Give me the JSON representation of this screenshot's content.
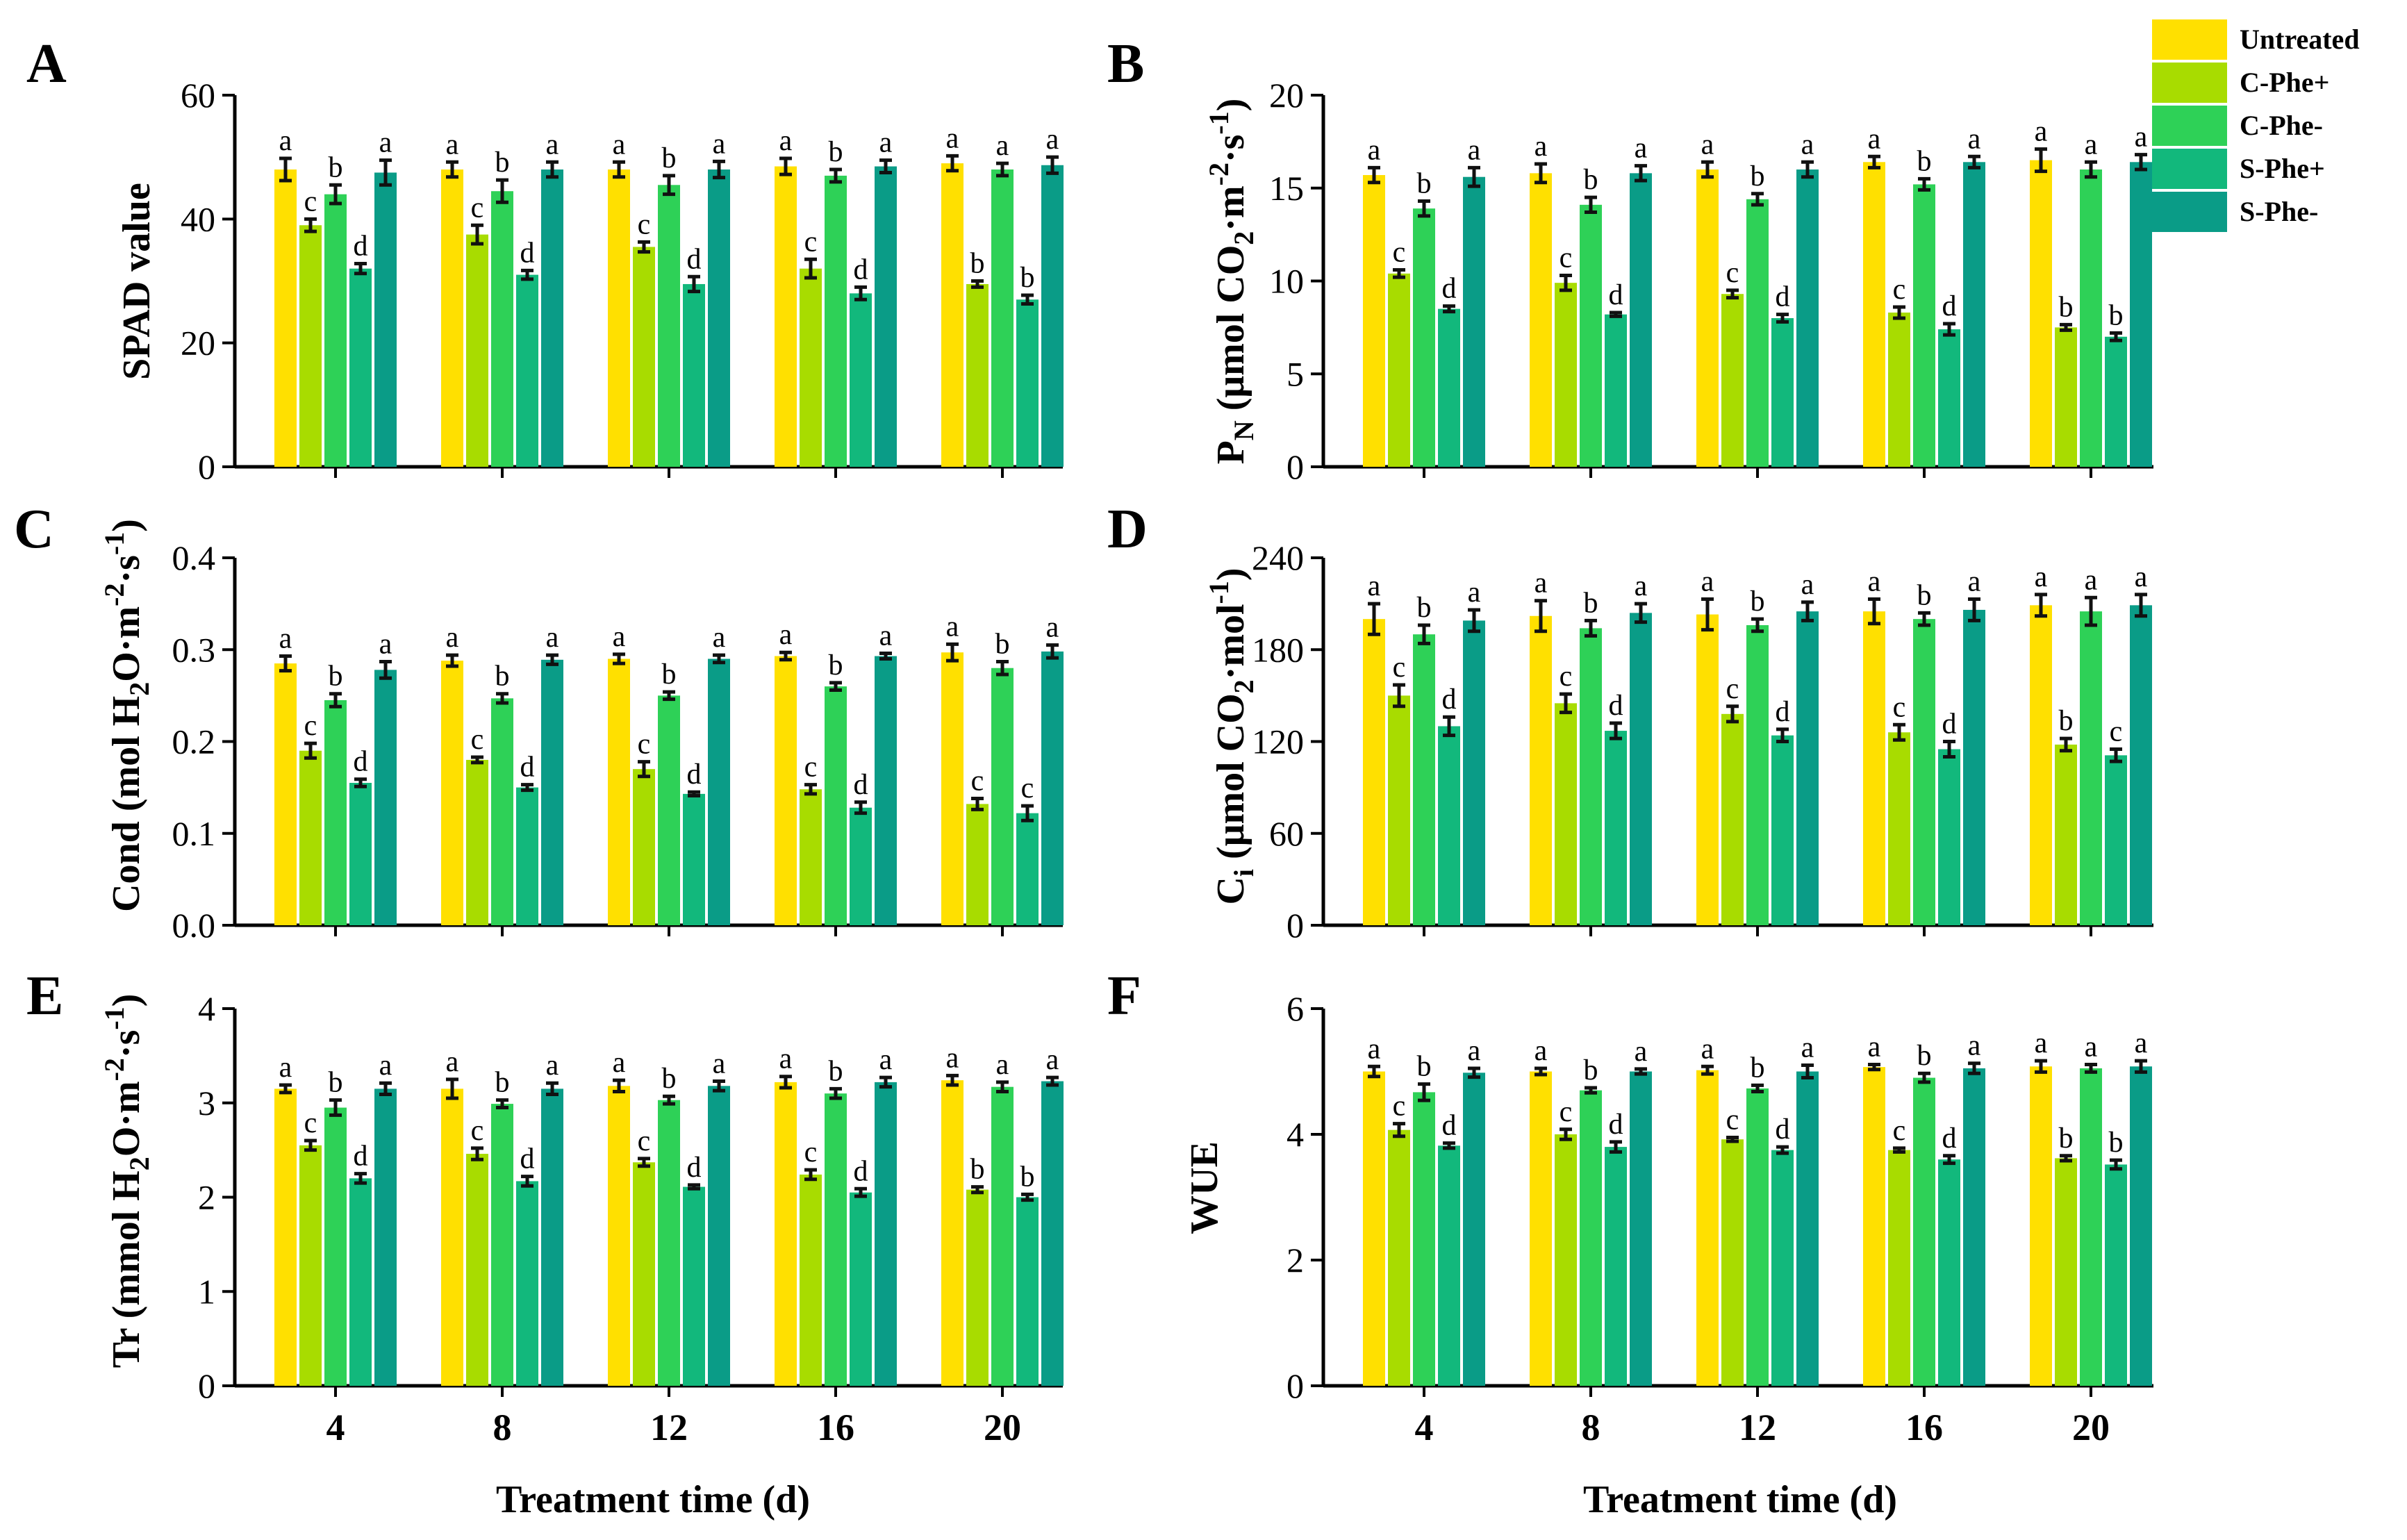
{
  "colors": {
    "Untreated": "#FFE000",
    "C-Phe+": "#A8DC00",
    "C-Phe-": "#2ED157",
    "S-Phe+": "#12B87C",
    "S-Phe-": "#0A9C87"
  },
  "legend": {
    "items": [
      "Untreated",
      "C-Phe+",
      "C-Phe-",
      "S-Phe+",
      "S-Phe-"
    ]
  },
  "x_axis_title": "Treatment time (d)",
  "chart_data": [
    {
      "panel": "A",
      "type": "bar",
      "ylabel": "SPAD value",
      "ylim": [
        0,
        60
      ],
      "yticks": [
        "0",
        "20",
        "40",
        "60"
      ],
      "categories": [
        "4",
        "8",
        "12",
        "16",
        "20"
      ],
      "series": [
        {
          "name": "Untreated",
          "values": [
            48,
            48,
            48,
            48.5,
            49
          ],
          "errors": [
            1.8,
            1.2,
            1.2,
            1.3,
            1.2
          ],
          "letters": [
            "a",
            "a",
            "a",
            "a",
            "a"
          ]
        },
        {
          "name": "C-Phe+",
          "values": [
            39,
            37.5,
            35.5,
            32,
            29.5
          ],
          "errors": [
            1.0,
            1.5,
            0.8,
            1.5,
            0.5
          ],
          "letters": [
            "c",
            "c",
            "c",
            "c",
            "b"
          ]
        },
        {
          "name": "C-Phe-",
          "values": [
            44,
            44.5,
            45.5,
            47,
            48
          ],
          "errors": [
            1.5,
            1.8,
            1.5,
            1.0,
            1.0
          ],
          "letters": [
            "b",
            "b",
            "b",
            "b",
            "a"
          ]
        },
        {
          "name": "S-Phe+",
          "values": [
            32,
            31,
            29.5,
            28,
            27
          ],
          "errors": [
            0.8,
            0.7,
            1.2,
            1.0,
            0.7
          ],
          "letters": [
            "d",
            "d",
            "d",
            "d",
            "b"
          ]
        },
        {
          "name": "S-Phe-",
          "values": [
            47.5,
            48,
            48,
            48.5,
            48.7
          ],
          "errors": [
            2.0,
            1.2,
            1.3,
            1.0,
            1.3
          ],
          "letters": [
            "a",
            "a",
            "a",
            "a",
            "a"
          ]
        }
      ]
    },
    {
      "panel": "B",
      "type": "bar",
      "ylabel": "PN (μmol CO2·m-2·s-1)",
      "ylim": [
        0,
        20
      ],
      "yticks": [
        "0",
        "5",
        "10",
        "15",
        "20"
      ],
      "categories": [
        "4",
        "8",
        "12",
        "16",
        "20"
      ],
      "series": [
        {
          "name": "Untreated",
          "values": [
            15.7,
            15.8,
            16,
            16.4,
            16.5
          ],
          "errors": [
            0.4,
            0.5,
            0.4,
            0.3,
            0.6
          ],
          "letters": [
            "a",
            "a",
            "a",
            "a",
            "a"
          ]
        },
        {
          "name": "C-Phe+",
          "values": [
            10.4,
            9.9,
            9.3,
            8.3,
            7.5
          ],
          "errors": [
            0.2,
            0.4,
            0.2,
            0.3,
            0.15
          ],
          "letters": [
            "c",
            "c",
            "c",
            "c",
            "b"
          ]
        },
        {
          "name": "C-Phe-",
          "values": [
            13.9,
            14.1,
            14.4,
            15.2,
            16
          ],
          "errors": [
            0.4,
            0.4,
            0.3,
            0.3,
            0.4
          ],
          "letters": [
            "b",
            "b",
            "b",
            "b",
            "a"
          ]
        },
        {
          "name": "S-Phe+",
          "values": [
            8.5,
            8.2,
            8.0,
            7.4,
            7.0
          ],
          "errors": [
            0.15,
            0.1,
            0.2,
            0.3,
            0.2
          ],
          "letters": [
            "d",
            "d",
            "d",
            "d",
            "b"
          ]
        },
        {
          "name": "S-Phe-",
          "values": [
            15.6,
            15.8,
            16,
            16.4,
            16.4
          ],
          "errors": [
            0.5,
            0.4,
            0.4,
            0.3,
            0.4
          ],
          "letters": [
            "a",
            "a",
            "a",
            "a",
            "a"
          ]
        }
      ]
    },
    {
      "panel": "C",
      "type": "bar",
      "ylabel": "Cond (mol H2O·m-2·s-1)",
      "ylim": [
        0,
        0.4
      ],
      "yticks": [
        "0.0",
        "0.1",
        "0.2",
        "0.3",
        "0.4"
      ],
      "categories": [
        "4",
        "8",
        "12",
        "16",
        "20"
      ],
      "series": [
        {
          "name": "Untreated",
          "values": [
            0.285,
            0.288,
            0.29,
            0.293,
            0.297
          ],
          "errors": [
            0.008,
            0.006,
            0.005,
            0.004,
            0.009
          ],
          "letters": [
            "a",
            "a",
            "a",
            "a",
            "a"
          ]
        },
        {
          "name": "C-Phe+",
          "values": [
            0.19,
            0.18,
            0.17,
            0.148,
            0.132
          ],
          "errors": [
            0.008,
            0.003,
            0.008,
            0.005,
            0.006
          ],
          "letters": [
            "c",
            "c",
            "c",
            "c",
            "c"
          ]
        },
        {
          "name": "C-Phe-",
          "values": [
            0.245,
            0.247,
            0.25,
            0.26,
            0.28
          ],
          "errors": [
            0.007,
            0.005,
            0.004,
            0.004,
            0.007
          ],
          "letters": [
            "b",
            "b",
            "b",
            "b",
            "b"
          ]
        },
        {
          "name": "S-Phe+",
          "values": [
            0.155,
            0.15,
            0.143,
            0.128,
            0.122
          ],
          "errors": [
            0.004,
            0.003,
            0.002,
            0.006,
            0.008
          ],
          "letters": [
            "d",
            "d",
            "d",
            "d",
            "c"
          ]
        },
        {
          "name": "S-Phe-",
          "values": [
            0.278,
            0.289,
            0.29,
            0.293,
            0.298
          ],
          "errors": [
            0.009,
            0.005,
            0.004,
            0.003,
            0.007
          ],
          "letters": [
            "a",
            "a",
            "a",
            "a",
            "a"
          ]
        }
      ]
    },
    {
      "panel": "D",
      "type": "bar",
      "ylabel": "Ci (μmol CO2·mol-1)",
      "ylim": [
        0,
        240
      ],
      "yticks": [
        "0",
        "60",
        "120",
        "180",
        "240"
      ],
      "categories": [
        "4",
        "8",
        "12",
        "16",
        "20"
      ],
      "series": [
        {
          "name": "Untreated",
          "values": [
            200,
            202,
            203,
            205,
            209
          ],
          "errors": [
            10,
            10,
            10,
            8,
            7
          ],
          "letters": [
            "a",
            "a",
            "a",
            "a",
            "a"
          ]
        },
        {
          "name": "C-Phe+",
          "values": [
            150,
            145,
            138,
            126,
            118
          ],
          "errors": [
            7,
            6,
            5,
            5,
            4
          ],
          "letters": [
            "c",
            "c",
            "c",
            "c",
            "b"
          ]
        },
        {
          "name": "C-Phe-",
          "values": [
            190,
            194,
            196,
            200,
            205
          ],
          "errors": [
            6,
            5,
            4,
            4,
            9
          ],
          "letters": [
            "b",
            "b",
            "b",
            "b",
            "a"
          ]
        },
        {
          "name": "S-Phe+",
          "values": [
            130,
            127,
            124,
            115,
            111
          ],
          "errors": [
            6,
            5,
            4,
            5,
            4
          ],
          "letters": [
            "d",
            "d",
            "d",
            "d",
            "c"
          ]
        },
        {
          "name": "S-Phe-",
          "values": [
            199,
            204,
            205,
            206,
            209
          ],
          "errors": [
            7,
            6,
            6,
            7,
            7
          ],
          "letters": [
            "a",
            "a",
            "a",
            "a",
            "a"
          ]
        }
      ]
    },
    {
      "panel": "E",
      "type": "bar",
      "ylabel": "Tr (mmol H2O·m-2·s-1)",
      "ylim": [
        0,
        4
      ],
      "yticks": [
        "0",
        "1",
        "2",
        "3",
        "4"
      ],
      "categories": [
        "4",
        "8",
        "12",
        "16",
        "20"
      ],
      "series": [
        {
          "name": "Untreated",
          "values": [
            3.15,
            3.15,
            3.18,
            3.22,
            3.24
          ],
          "errors": [
            0.04,
            0.1,
            0.06,
            0.06,
            0.05
          ],
          "letters": [
            "a",
            "a",
            "a",
            "a",
            "a"
          ]
        },
        {
          "name": "C-Phe+",
          "values": [
            2.55,
            2.46,
            2.37,
            2.24,
            2.08
          ],
          "errors": [
            0.05,
            0.06,
            0.04,
            0.05,
            0.03
          ],
          "letters": [
            "c",
            "c",
            "c",
            "c",
            "b"
          ]
        },
        {
          "name": "C-Phe-",
          "values": [
            2.95,
            2.99,
            3.03,
            3.1,
            3.17
          ],
          "errors": [
            0.08,
            0.04,
            0.04,
            0.05,
            0.05
          ],
          "letters": [
            "b",
            "b",
            "b",
            "b",
            "a"
          ]
        },
        {
          "name": "S-Phe+",
          "values": [
            2.2,
            2.17,
            2.11,
            2.05,
            2.0
          ],
          "errors": [
            0.05,
            0.05,
            0.02,
            0.04,
            0.03
          ],
          "letters": [
            "d",
            "d",
            "d",
            "d",
            "b"
          ]
        },
        {
          "name": "S-Phe-",
          "values": [
            3.15,
            3.15,
            3.18,
            3.22,
            3.23
          ],
          "errors": [
            0.06,
            0.06,
            0.05,
            0.05,
            0.04
          ],
          "letters": [
            "a",
            "a",
            "a",
            "a",
            "a"
          ]
        }
      ]
    },
    {
      "panel": "F",
      "type": "bar",
      "ylabel": "WUE",
      "ylim": [
        0,
        6
      ],
      "yticks": [
        "0",
        "2",
        "4",
        "6"
      ],
      "categories": [
        "4",
        "8",
        "12",
        "16",
        "20"
      ],
      "series": [
        {
          "name": "Untreated",
          "values": [
            5.0,
            5.0,
            5.02,
            5.07,
            5.08
          ],
          "errors": [
            0.08,
            0.05,
            0.06,
            0.04,
            0.09
          ],
          "letters": [
            "a",
            "a",
            "a",
            "a",
            "a"
          ]
        },
        {
          "name": "C-Phe+",
          "values": [
            4.07,
            4.0,
            3.92,
            3.75,
            3.62
          ],
          "errors": [
            0.1,
            0.08,
            0.03,
            0.03,
            0.04
          ],
          "letters": [
            "c",
            "c",
            "c",
            "c",
            "b"
          ]
        },
        {
          "name": "C-Phe-",
          "values": [
            4.67,
            4.7,
            4.73,
            4.9,
            5.05
          ],
          "errors": [
            0.13,
            0.04,
            0.05,
            0.07,
            0.06
          ],
          "letters": [
            "b",
            "b",
            "b",
            "b",
            "a"
          ]
        },
        {
          "name": "S-Phe+",
          "values": [
            3.82,
            3.8,
            3.75,
            3.6,
            3.52
          ],
          "errors": [
            0.04,
            0.08,
            0.05,
            0.06,
            0.07
          ],
          "letters": [
            "d",
            "d",
            "d",
            "d",
            "b"
          ]
        },
        {
          "name": "S-Phe-",
          "values": [
            4.98,
            5.0,
            5.0,
            5.05,
            5.08
          ],
          "errors": [
            0.07,
            0.04,
            0.1,
            0.08,
            0.09
          ],
          "letters": [
            "a",
            "a",
            "a",
            "a",
            "a"
          ]
        }
      ]
    }
  ]
}
